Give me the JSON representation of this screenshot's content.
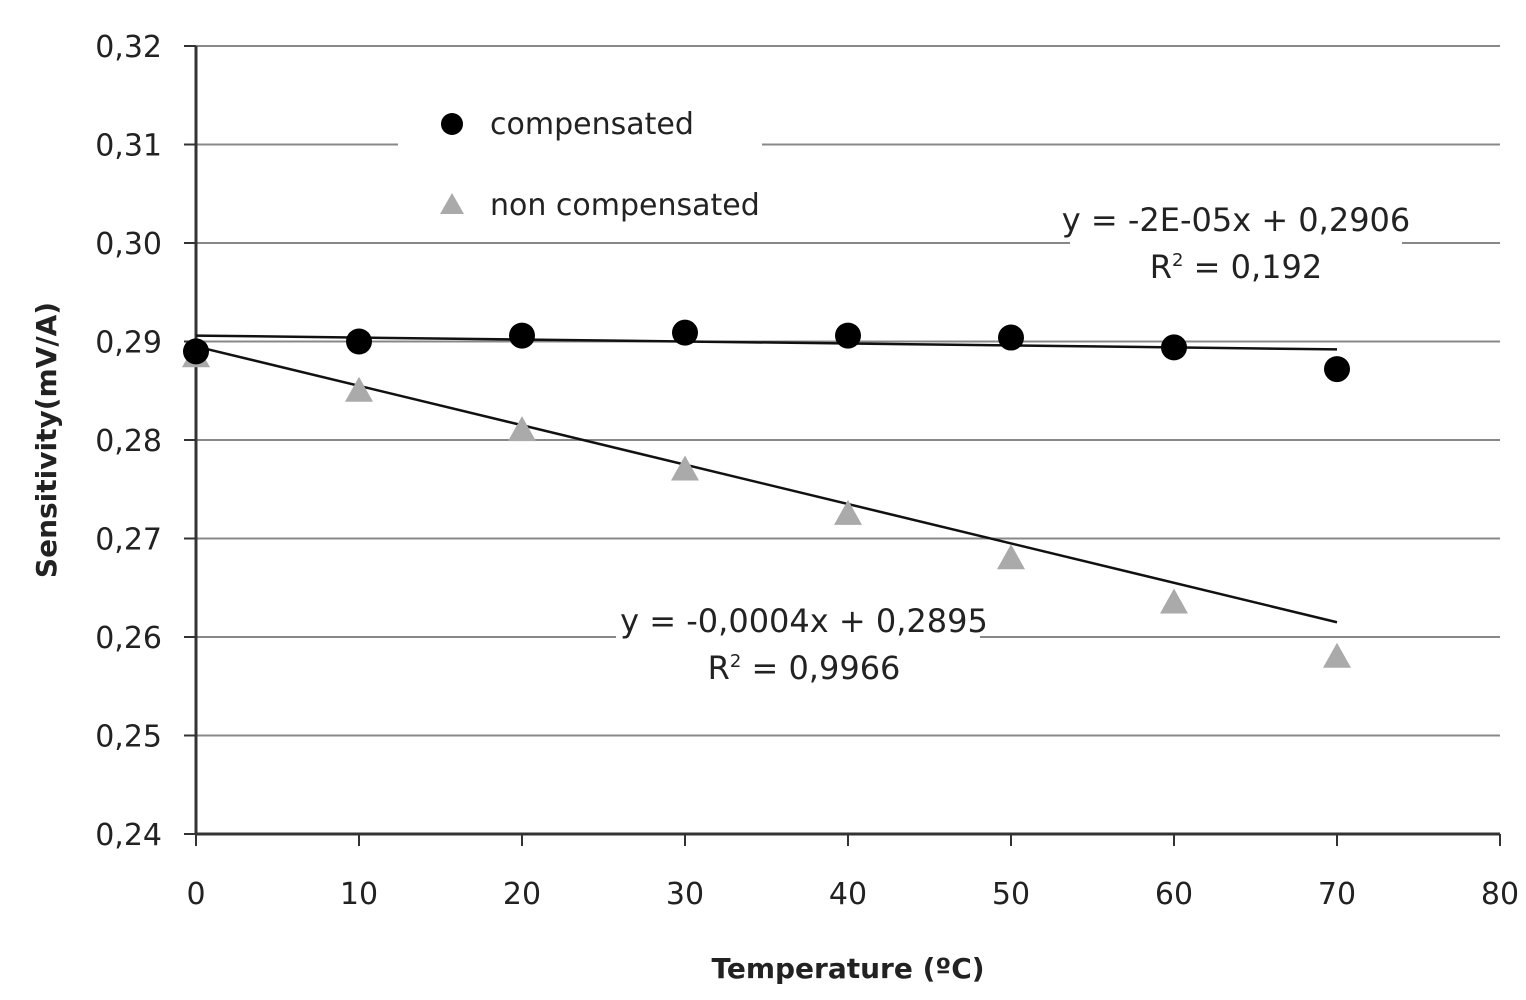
{
  "chart_data": {
    "type": "scatter",
    "xlabel": "Temperature (ºC)",
    "ylabel": "Sensitivity(mV/A)",
    "xlim": [
      0,
      80
    ],
    "ylim": [
      0.24,
      0.32
    ],
    "x_ticks": [
      "0",
      "10",
      "20",
      "30",
      "40",
      "50",
      "60",
      "70",
      "80"
    ],
    "y_ticks": [
      "0,24",
      "0,25",
      "0,26",
      "0,27",
      "0,28",
      "0,29",
      "0,30",
      "0,31",
      "0,32"
    ],
    "grid": true,
    "legend_position": "top-left",
    "series": [
      {
        "name": "compensated",
        "marker": "circle",
        "color": "#000000",
        "x": [
          0,
          10,
          20,
          30,
          40,
          50,
          60,
          70
        ],
        "y": [
          0.289,
          0.29,
          0.2906,
          0.2909,
          0.2906,
          0.2904,
          0.2894,
          0.2872
        ],
        "trendline": {
          "slope": -2e-05,
          "intercept": 0.2906,
          "x_range": [
            0,
            70
          ]
        },
        "equation": "y = -2E-05x + 0,2906",
        "r2_label": "R",
        "r2_value": " = 0,192"
      },
      {
        "name": "non compensated",
        "marker": "triangle",
        "color": "#aaaaaa",
        "x": [
          0,
          10,
          20,
          30,
          40,
          50,
          60,
          70
        ],
        "y": [
          0.2885,
          0.285,
          0.281,
          0.277,
          0.2725,
          0.268,
          0.2635,
          0.258
        ],
        "trendline": {
          "slope": -0.0004,
          "intercept": 0.2895,
          "x_range": [
            0,
            70
          ]
        },
        "equation": "y = -0,0004x + 0,2895",
        "r2_label": "R",
        "r2_value": " = 0,9966"
      }
    ]
  }
}
